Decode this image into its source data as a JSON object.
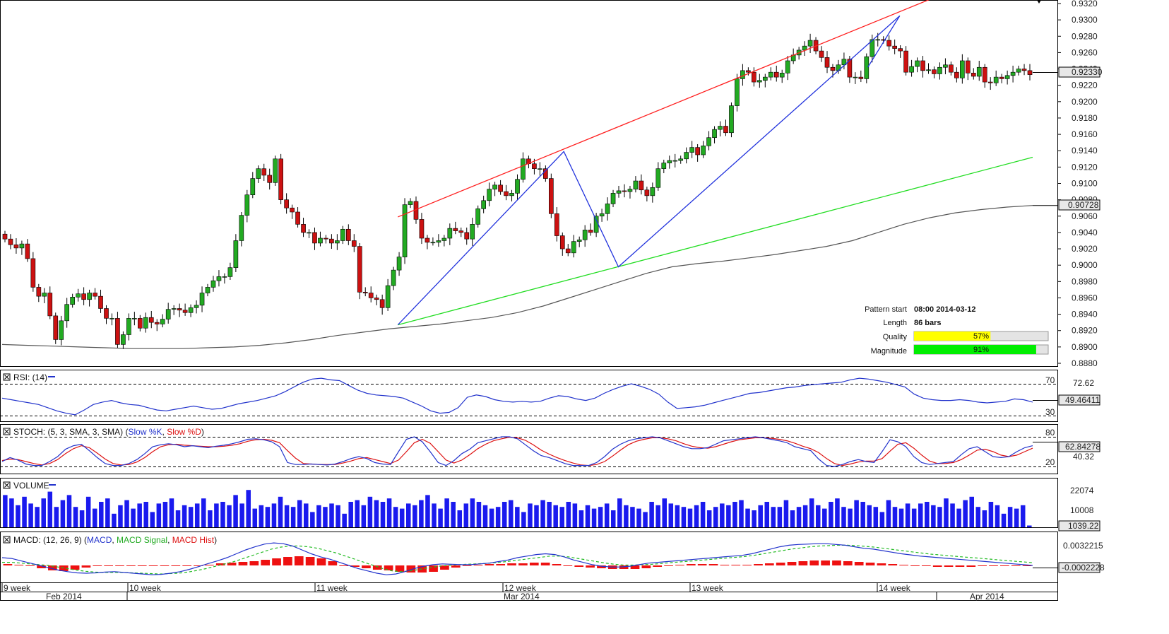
{
  "pattern_info": {
    "start_label": "Pattern start",
    "start_value": "08:00 2014-03-12",
    "length_label": "Length",
    "length_value": "86 bars",
    "quality_label": "Quality",
    "quality_pct": 57,
    "quality_text": "57%",
    "magnitude_label": "Magnitude",
    "magnitude_pct": 91,
    "magnitude_text": "91%"
  },
  "panels": {
    "rsi": {
      "label": "RSI: (14)",
      "current": "49.46411",
      "axis_top": "72.62",
      "axis_low": "30",
      "level_high": "70"
    },
    "stoch": {
      "label_prefix": "STOCH: (5, 3, SMA, 3, SMA) (",
      "k_label": "Slow %K",
      "d_label": "Slow %D",
      "label_suffix": ")",
      "current": "62.84278",
      "axis_mid": "40.32",
      "level_high": "80",
      "level_low": "20"
    },
    "volume": {
      "label": "VOLUME",
      "current": "1039.22",
      "ticks": [
        "22074",
        "10008"
      ]
    },
    "macd": {
      "label_prefix": "MACD: (12, 26, 9) (",
      "macd_label": "MACD",
      "signal_label": "MACD Signal",
      "hist_label": "MACD Hist",
      "label_suffix": ")",
      "current": "-0.0002228",
      "tick": "0.0032215"
    }
  },
  "time_axis": {
    "weeks": [
      "9 week",
      "10 week",
      "11 week",
      "12 week",
      "13 week",
      "14 week"
    ],
    "months": [
      "Feb 2014",
      "Mar 2014",
      "Apr 2014"
    ]
  },
  "colors": {
    "bull": "#22aa22",
    "bear": "#cc1111",
    "resistance": "#ff2020",
    "support": "#22dd22",
    "zigzag": "#2233dd",
    "sma": "#555555",
    "rsi": "#2233cc",
    "volume": "#1a1aee",
    "macd_hist": "#ee1111",
    "macd_signal": "#22bb22"
  },
  "chart_data": {
    "type": "candlestick",
    "price_axis": {
      "min": 0.888,
      "max": 0.932,
      "step": 0.002,
      "ticks": [
        "0.9320",
        "0.9300",
        "0.9280",
        "0.9260",
        "0.9240",
        "0.9220",
        "0.9200",
        "0.9180",
        "0.9160",
        "0.9140",
        "0.9120",
        "0.9100",
        "0.9080",
        "0.9060",
        "0.9040",
        "0.9020",
        "0.9000",
        "0.8980",
        "0.8960",
        "0.8940",
        "0.8920",
        "0.8900",
        "0.8880"
      ]
    },
    "current_price": "0.92330",
    "sma_value": "0.90728",
    "closes": [
      0.9032,
      0.9025,
      0.9021,
      0.9026,
      0.9008,
      0.8973,
      0.8962,
      0.8966,
      0.8938,
      0.8909,
      0.8932,
      0.8952,
      0.8961,
      0.8965,
      0.8958,
      0.8966,
      0.8962,
      0.8947,
      0.8935,
      0.8935,
      0.8903,
      0.8915,
      0.8935,
      0.8935,
      0.8923,
      0.8936,
      0.893,
      0.8928,
      0.8934,
      0.8946,
      0.8947,
      0.8945,
      0.8942,
      0.8948,
      0.8951,
      0.8966,
      0.8973,
      0.8981,
      0.8986,
      0.8986,
      0.8997,
      0.903,
      0.9061,
      0.9086,
      0.9106,
      0.9118,
      0.911,
      0.9101,
      0.913,
      0.908,
      0.907,
      0.9065,
      0.905,
      0.904,
      0.904,
      0.9027,
      0.9033,
      0.9032,
      0.9027,
      0.903,
      0.9044,
      0.903,
      0.9023,
      0.8967,
      0.8966,
      0.896,
      0.8958,
      0.8948,
      0.8975,
      0.8994,
      0.901,
      0.9074,
      0.9078,
      0.9056,
      0.9033,
      0.9028,
      0.9028,
      0.903,
      0.9033,
      0.9045,
      0.9042,
      0.904,
      0.9032,
      0.905,
      0.9069,
      0.9079,
      0.9093,
      0.9098,
      0.909,
      0.9085,
      0.9088,
      0.9105,
      0.913,
      0.9124,
      0.9118,
      0.9118,
      0.9106,
      0.9063,
      0.9036,
      0.902,
      0.9015,
      0.9029,
      0.9031,
      0.9043,
      0.904,
      0.906,
      0.9063,
      0.9075,
      0.9088,
      0.9091,
      0.909,
      0.9093,
      0.9103,
      0.9092,
      0.9085,
      0.9095,
      0.9118,
      0.9125,
      0.9128,
      0.9128,
      0.913,
      0.9138,
      0.9144,
      0.9135,
      0.9146,
      0.9156,
      0.9166,
      0.917,
      0.9162,
      0.9195,
      0.9228,
      0.9238,
      0.9236,
      0.9224,
      0.9226,
      0.923,
      0.9236,
      0.923,
      0.9235,
      0.925,
      0.9257,
      0.9263,
      0.9268,
      0.9275,
      0.9262,
      0.9254,
      0.9242,
      0.9238,
      0.9245,
      0.9252,
      0.923,
      0.923,
      0.9228,
      0.9255,
      0.9276,
      0.9276,
      0.9275,
      0.9268,
      0.9265,
      0.9262,
      0.9236,
      0.9243,
      0.925,
      0.9238,
      0.9239,
      0.9234,
      0.9242,
      0.9245,
      0.9236,
      0.9229,
      0.925,
      0.9235,
      0.9231,
      0.9242,
      0.9224,
      0.9223,
      0.923,
      0.9228,
      0.9232,
      0.9236,
      0.924,
      0.9238,
      0.9233
    ],
    "sma": [
      0.8903,
      0.8902,
      0.8901,
      0.89,
      0.8899,
      0.8898,
      0.8898,
      0.8898,
      0.8899,
      0.89,
      0.8902,
      0.8905,
      0.8909,
      0.8914,
      0.8918,
      0.8922,
      0.8925,
      0.8928,
      0.8932,
      0.8936,
      0.8942,
      0.895,
      0.896,
      0.897,
      0.898,
      0.899,
      0.8998,
      0.9002,
      0.9005,
      0.9009,
      0.9013,
      0.9018,
      0.9023,
      0.903,
      0.904,
      0.905,
      0.9058,
      0.9064,
      0.9068,
      0.9071,
      0.9073
    ],
    "resistance_line": {
      "x0": 0.384,
      "y0": 0.9059,
      "x1": 0.9,
      "y1": 0.9325
    },
    "support_line": {
      "x0": 0.384,
      "y0": 0.8927,
      "x1": 1.0,
      "y1": 0.9132
    },
    "zigzag": [
      {
        "x": 0.384,
        "y": 0.8927
      },
      {
        "x": 0.545,
        "y": 0.9139
      },
      {
        "x": 0.598,
        "y": 0.8998
      },
      {
        "x": 0.871,
        "y": 0.9305
      },
      {
        "x": 0.84,
        "y": 0.9242
      }
    ],
    "rsi": [
      52,
      50,
      48,
      46,
      44,
      40,
      36,
      33,
      31,
      37,
      44,
      47,
      49,
      46,
      44,
      43,
      40,
      37,
      36,
      38,
      40,
      42,
      40,
      38,
      39,
      42,
      45,
      47,
      49,
      52,
      55,
      60,
      66,
      72,
      76,
      77,
      75,
      74,
      68,
      62,
      58,
      56,
      55,
      54,
      52,
      47,
      42,
      36,
      33,
      34,
      40,
      53,
      56,
      54,
      50,
      48,
      47,
      48,
      47,
      48,
      52,
      55,
      54,
      51,
      49,
      52,
      58,
      63,
      67,
      70,
      67,
      63,
      57,
      47,
      39,
      40,
      41,
      43,
      46,
      49,
      52,
      55,
      58,
      59,
      61,
      63,
      65,
      66,
      68,
      69,
      70,
      71,
      72,
      75,
      77,
      76,
      74,
      72,
      69,
      66,
      57,
      52,
      50,
      49,
      49,
      50,
      49,
      47,
      46,
      47,
      48,
      51,
      50,
      47
    ],
    "stoch_k": [
      30,
      38,
      33,
      25,
      22,
      22,
      30,
      40,
      55,
      62,
      65,
      52,
      38,
      26,
      22,
      22,
      26,
      34,
      46,
      60,
      64,
      66,
      64,
      60,
      62,
      60,
      58,
      61,
      63,
      66,
      70,
      75,
      76,
      74,
      70,
      60,
      28,
      24,
      24,
      25,
      24,
      23,
      25,
      30,
      36,
      40,
      36,
      28,
      25,
      24,
      50,
      75,
      80,
      70,
      50,
      28,
      22,
      32,
      46,
      55,
      68,
      72,
      76,
      80,
      80,
      76,
      64,
      52,
      42,
      38,
      32,
      26,
      22,
      22,
      22,
      28,
      40,
      55,
      65,
      72,
      76,
      78,
      80,
      78,
      72,
      66,
      60,
      56,
      56,
      58,
      65,
      72,
      74,
      76,
      78,
      80,
      78,
      75,
      72,
      68,
      60,
      56,
      52,
      35,
      22,
      20,
      24,
      30,
      34,
      30,
      28,
      50,
      74,
      70,
      60,
      40,
      28,
      24,
      26,
      28,
      30,
      44,
      56,
      60,
      50,
      40,
      38,
      40,
      50,
      58,
      62
    ],
    "stoch_d": [
      32,
      35,
      34,
      30,
      26,
      23,
      26,
      34,
      46,
      56,
      62,
      58,
      47,
      35,
      26,
      23,
      24,
      29,
      38,
      50,
      60,
      64,
      65,
      63,
      62,
      61,
      60,
      60,
      61,
      63,
      66,
      71,
      74,
      75,
      73,
      68,
      52,
      37,
      26,
      25,
      24,
      24,
      24,
      27,
      31,
      36,
      38,
      34,
      30,
      26,
      33,
      50,
      68,
      75,
      67,
      50,
      33,
      27,
      33,
      44,
      56,
      65,
      72,
      76,
      79,
      78,
      73,
      64,
      53,
      45,
      38,
      32,
      27,
      23,
      22,
      24,
      30,
      41,
      53,
      64,
      71,
      75,
      78,
      78,
      76,
      72,
      66,
      61,
      58,
      57,
      60,
      65,
      70,
      74,
      76,
      78,
      78,
      77,
      75,
      72,
      67,
      61,
      56,
      48,
      36,
      26,
      22,
      25,
      29,
      31,
      31,
      36,
      51,
      65,
      68,
      57,
      43,
      31,
      26,
      26,
      28,
      34,
      43,
      53,
      55,
      50,
      43,
      40,
      43,
      50,
      57
    ],
    "volume": [
      19000,
      17000,
      13000,
      18000,
      14000,
      12000,
      17000,
      21000,
      12000,
      16000,
      19000,
      12000,
      10000,
      18000,
      11000,
      15000,
      17000,
      8000,
      13000,
      16000,
      11000,
      14000,
      15000,
      9000,
      14000,
      15000,
      17000,
      10000,
      13000,
      12000,
      14000,
      17000,
      10000,
      14000,
      15000,
      13000,
      19000,
      14000,
      22000,
      11000,
      13000,
      12000,
      14000,
      18000,
      13000,
      12000,
      16000,
      14000,
      9000,
      13000,
      12000,
      14000,
      13000,
      8000,
      15000,
      16000,
      13000,
      18000,
      16000,
      15000,
      17000,
      12000,
      11000,
      14000,
      13000,
      16000,
      19000,
      14000,
      11000,
      17000,
      15000,
      10000,
      14000,
      17000,
      15000,
      13000,
      11000,
      12000,
      15000,
      16000,
      12000,
      9000,
      14000,
      13000,
      16000,
      15000,
      13000,
      12000,
      15000,
      14000,
      10000,
      13000,
      11000,
      12000,
      14000,
      10000,
      17000,
      13000,
      12000,
      11000,
      9000,
      15000,
      13000,
      17000,
      14000,
      13000,
      12000,
      11000,
      13000,
      15000,
      10000,
      12000,
      14000,
      13000,
      15000,
      16000,
      11000,
      10000,
      13000,
      15000,
      12000,
      12000,
      16000,
      10000,
      12000,
      13000,
      17000,
      13000,
      11000,
      15000,
      17000,
      12000,
      11000,
      16000,
      15000,
      13000,
      12000,
      9000,
      16000,
      12000,
      11000,
      14000,
      11000,
      14000,
      15000,
      13000,
      12000,
      17000,
      14000,
      11000,
      16000,
      18000,
      12000,
      10000,
      15000,
      13000,
      8000,
      12000,
      11000,
      13000,
      1039
    ],
    "macd": [
      20,
      18,
      12,
      6,
      0,
      -6,
      -12,
      -16,
      -19,
      -20,
      -19,
      -17,
      -16,
      -18,
      -20,
      -22,
      -24,
      -23,
      -20,
      -16,
      -10,
      -3,
      5,
      12,
      20,
      30,
      40,
      48,
      55,
      58,
      56,
      50,
      40,
      30,
      22,
      16,
      8,
      0,
      -8,
      -14,
      -20,
      -24,
      -22,
      -16,
      -8,
      -2,
      2,
      4,
      3,
      2,
      2,
      4,
      6,
      10,
      14,
      20,
      24,
      28,
      30,
      28,
      22,
      14,
      8,
      2,
      -2,
      -4,
      -4,
      -2,
      2,
      6,
      8,
      10,
      12,
      14,
      16,
      18,
      20,
      22,
      24,
      26,
      30,
      36,
      42,
      48,
      52,
      54,
      55,
      56,
      56,
      54,
      52,
      48,
      44,
      42,
      38,
      34,
      30,
      27,
      24,
      22,
      20,
      18,
      16,
      14,
      12,
      10,
      8,
      6,
      4,
      2,
      0
    ],
    "macd_signal": [
      8,
      8,
      6,
      4,
      2,
      0,
      -4,
      -8,
      -12,
      -15,
      -17,
      -18,
      -18,
      -18,
      -19,
      -20,
      -21,
      -22,
      -21,
      -20,
      -17,
      -13,
      -8,
      -2,
      4,
      10,
      18,
      26,
      34,
      42,
      47,
      50,
      50,
      48,
      44,
      38,
      32,
      24,
      16,
      8,
      0,
      -8,
      -14,
      -16,
      -14,
      -10,
      -6,
      -2,
      0,
      2,
      3,
      4,
      5,
      7,
      9,
      12,
      15,
      18,
      21,
      24,
      24,
      22,
      18,
      14,
      10,
      6,
      3,
      1,
      1,
      2,
      3,
      5,
      7,
      9,
      11,
      13,
      15,
      17,
      19,
      21,
      23,
      26,
      30,
      34,
      38,
      42,
      45,
      48,
      50,
      51,
      52,
      52,
      51,
      49,
      47,
      44,
      41,
      38,
      35,
      32,
      29,
      27,
      25,
      23,
      21,
      19,
      17,
      15,
      13,
      11,
      9,
      7
    ],
    "macd_hist": [
      2,
      1,
      0,
      -4,
      -7,
      -8,
      -6,
      -3,
      -1,
      0,
      -1,
      0,
      0,
      -1,
      -1,
      -1,
      -1,
      0,
      1,
      3,
      4,
      5,
      6,
      8,
      10,
      12,
      13,
      12,
      10,
      6,
      0,
      -2,
      -4,
      -6,
      -7,
      -9,
      -10,
      -10,
      -9,
      -6,
      -3,
      0,
      1,
      2,
      2,
      3,
      3,
      4,
      4,
      2,
      0,
      -2,
      -3,
      -4,
      -5,
      -5,
      -5,
      -4,
      -2,
      0,
      1,
      2,
      2,
      2,
      1,
      1,
      1,
      2,
      3,
      4,
      5,
      6,
      7,
      7,
      7,
      6,
      5,
      4,
      3,
      2,
      1,
      0,
      -1,
      -2,
      -2,
      -2,
      -2,
      -1,
      -1,
      -1,
      -1,
      0
    ]
  }
}
